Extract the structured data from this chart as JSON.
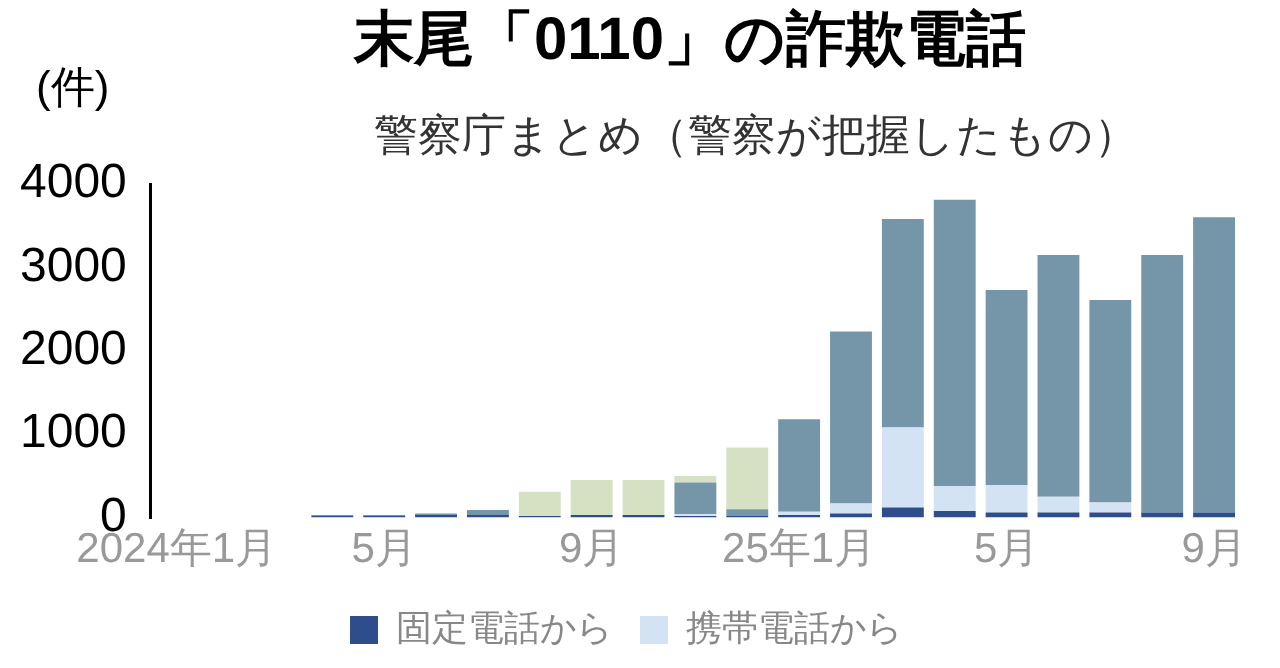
{
  "chart_data": {
    "type": "bar",
    "title": "末尾「0110」の詐欺電話",
    "subtitle": "警察庁まとめ（警察が把握したもの）",
    "ylabel": "(件)",
    "categories": [
      "2024年1月",
      null,
      null,
      null,
      "5月",
      null,
      null,
      null,
      "9月",
      null,
      null,
      null,
      "25年1月",
      null,
      null,
      null,
      "5月",
      null,
      null,
      null,
      "9月"
    ],
    "stacked": true,
    "ylim": [
      0,
      4000
    ],
    "yticks": [
      0,
      1000,
      2000,
      3000,
      4000
    ],
    "grid": false,
    "legend": "bottom",
    "series": [
      {
        "name": "固定電話から",
        "color": "#2e4d8a",
        "values": [
          null,
          null,
          null,
          20,
          20,
          30,
          30,
          20,
          30,
          30,
          20,
          20,
          30,
          50,
          120,
          80,
          60,
          60,
          60,
          60,
          60
        ]
      },
      {
        "name": "携帯電話から",
        "color": "#d4e3f3",
        "values": [
          null,
          null,
          null,
          0,
          0,
          0,
          null,
          0,
          0,
          0,
          20,
          null,
          40,
          120,
          960,
          300,
          330,
          190,
          120,
          0,
          0
        ]
      },
      {
        "color": "#7596a8",
        "values": [
          null,
          null,
          null,
          10,
          10,
          20,
          60,
          0,
          0,
          0,
          380,
          80,
          1110,
          2060,
          2500,
          3430,
          2340,
          2900,
          2430,
          3090,
          3540
        ]
      },
      {
        "color": "#d6e1c4",
        "values": [
          null,
          null,
          null,
          0,
          0,
          0,
          0,
          290,
          420,
          420,
          80,
          740,
          0,
          0,
          0,
          0,
          0,
          0,
          0,
          0,
          0
        ]
      }
    ]
  }
}
